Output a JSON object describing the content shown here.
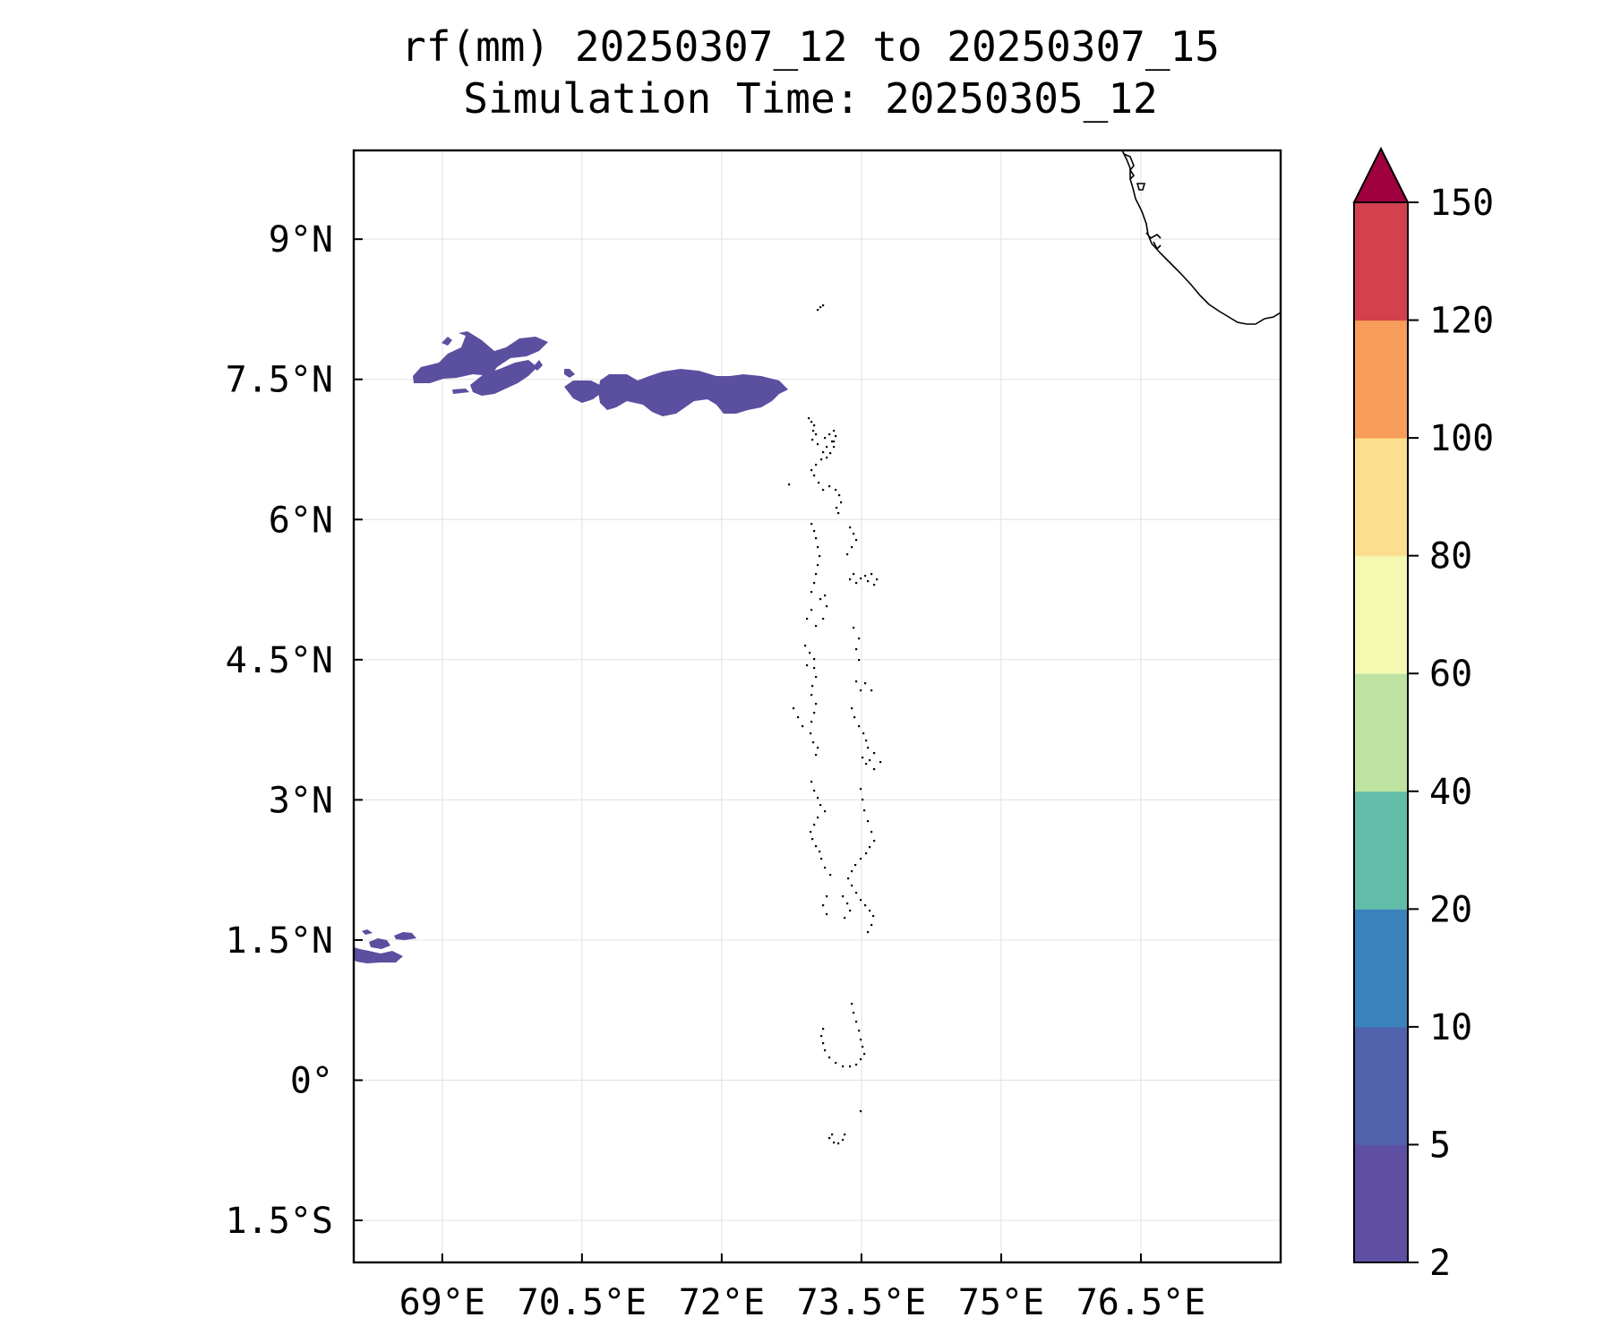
{
  "title": {
    "line1": "rf(mm) 20250307_12 to 20250307_15",
    "line2": "Simulation Time: 20250305_12"
  },
  "map": {
    "lon_range": [
      68.05,
      78.0
    ],
    "lat_range": [
      -1.95,
      9.95
    ],
    "lon_ticks": [
      {
        "value": 69.0,
        "label": "69°E"
      },
      {
        "value": 70.5,
        "label": "70.5°E"
      },
      {
        "value": 72.0,
        "label": "72°E"
      },
      {
        "value": 73.5,
        "label": "73.5°E"
      },
      {
        "value": 75.0,
        "label": "75°E"
      },
      {
        "value": 76.5,
        "label": "76.5°E"
      }
    ],
    "lat_ticks": [
      {
        "value": 9.0,
        "label": "9°N"
      },
      {
        "value": 7.5,
        "label": "7.5°N"
      },
      {
        "value": 6.0,
        "label": "6°N"
      },
      {
        "value": 4.5,
        "label": "4.5°N"
      },
      {
        "value": 3.0,
        "label": "3°N"
      },
      {
        "value": 1.5,
        "label": "1.5°N"
      },
      {
        "value": 0.0,
        "label": "0°"
      },
      {
        "value": -1.5,
        "label": "1.5°S"
      }
    ],
    "grid": true,
    "rain_color": "#5b4fa0"
  },
  "colorbar": {
    "levels": [
      "2",
      "5",
      "10",
      "20",
      "40",
      "60",
      "80",
      "100",
      "120",
      "150"
    ],
    "colors": [
      "#5e4fa2",
      "#4f62ab",
      "#3a82bb",
      "#63bea9",
      "#bee3a0",
      "#f3f9b0",
      "#fbdf8e",
      "#f89d5a",
      "#d5404e",
      "#a0003d"
    ],
    "extend": "max"
  },
  "chart_data": {
    "type": "contour-map",
    "variable": "rf(mm)",
    "period": "20250307_12 to 20250307_15",
    "simulation_time": "20250305_12",
    "levels": [
      2,
      5,
      10,
      20,
      40,
      60,
      80,
      100,
      120,
      150
    ],
    "rain_regions": [
      {
        "level_band": "2-5",
        "lon_range": [
          68.6,
          70.1
        ],
        "lat_range": [
          7.45,
          7.95
        ]
      },
      {
        "level_band": "2-5",
        "lon_range": [
          70.2,
          72.7
        ],
        "lat_range": [
          7.2,
          7.6
        ]
      },
      {
        "level_band": "2-5",
        "lon_range": [
          68.05,
          68.7
        ],
        "lat_range": [
          1.2,
          1.55
        ]
      }
    ]
  }
}
